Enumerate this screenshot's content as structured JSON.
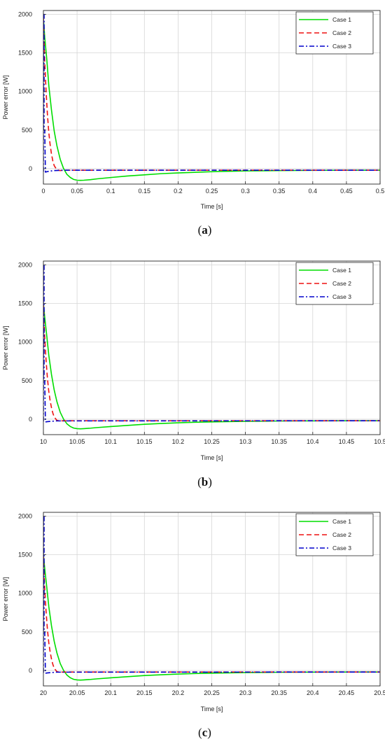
{
  "chart_data": [
    {
      "type": "line",
      "caption": "a",
      "xlabel": "Time [s]",
      "ylabel": "Power error [W]",
      "xlim": [
        0,
        0.5
      ],
      "ylim": [
        -200,
        2050
      ],
      "xticks": [
        0,
        0.05,
        0.1,
        0.15,
        0.2,
        0.25,
        0.3,
        0.35,
        0.4,
        0.45,
        0.5
      ],
      "xtick_labels": [
        "0",
        "0.05",
        "0.1",
        "0.15",
        "0.2",
        "0.25",
        "0.3",
        "0.35",
        "0.4",
        "0.45",
        "0.5"
      ],
      "yticks": [
        0,
        500,
        1000,
        1500,
        2000
      ],
      "ytick_labels": [
        "0",
        "500",
        "1000",
        "1500",
        "2000"
      ],
      "grid": true,
      "legend_position": "top-right",
      "series": [
        {
          "name": "Case 1",
          "color": "#00dd00",
          "style": "solid",
          "x": [
            0,
            0.002,
            0.005,
            0.008,
            0.012,
            0.016,
            0.02,
            0.025,
            0.03,
            0.035,
            0.04,
            0.045,
            0.05,
            0.055,
            0.06,
            0.07,
            0.08,
            0.1,
            0.125,
            0.15,
            0.175,
            0.2,
            0.225,
            0.25,
            0.3,
            0.35,
            0.4,
            0.45,
            0.5
          ],
          "y": [
            1950,
            1700,
            1420,
            1080,
            760,
            490,
            300,
            120,
            0,
            -75,
            -115,
            -140,
            -150,
            -152,
            -150,
            -143,
            -132,
            -115,
            -95,
            -80,
            -65,
            -55,
            -47,
            -40,
            -30,
            -25,
            -22,
            -20,
            -20
          ]
        },
        {
          "name": "Case 2",
          "color": "#ee1111",
          "style": "dashed",
          "x": [
            0,
            0.002,
            0.004,
            0.006,
            0.008,
            0.01,
            0.012,
            0.014,
            0.016,
            0.02,
            0.025,
            0.03,
            0.035,
            0.5
          ],
          "y": [
            1950,
            1380,
            1000,
            700,
            470,
            310,
            190,
            100,
            40,
            -15,
            -25,
            -20,
            -20,
            -20
          ]
        },
        {
          "name": "Case 3",
          "color": "#0000cc",
          "style": "dashdot",
          "x": [
            0,
            0,
            0.001,
            0.001,
            0.002,
            0.003,
            0.005,
            0.008,
            0.015,
            0.03,
            0.5
          ],
          "y": [
            -40,
            2000,
            2000,
            500,
            500,
            -45,
            -40,
            -35,
            -25,
            -20,
            -20
          ]
        }
      ]
    },
    {
      "type": "line",
      "caption": "b",
      "xlabel": "Time [s]",
      "ylabel": "Power error [W]",
      "xlim": [
        10,
        10.5
      ],
      "ylim": [
        -200,
        2050
      ],
      "xticks": [
        10,
        10.05,
        10.1,
        10.15,
        10.2,
        10.25,
        10.3,
        10.35,
        10.4,
        10.45,
        10.5
      ],
      "xtick_labels": [
        "10",
        "10.05",
        "10.1",
        "10.15",
        "10.2",
        "10.25",
        "10.3",
        "10.35",
        "10.4",
        "10.45",
        "10.5"
      ],
      "yticks": [
        0,
        500,
        1000,
        1500,
        2000
      ],
      "ytick_labels": [
        "0",
        "500",
        "1000",
        "1500",
        "2000"
      ],
      "grid": true,
      "legend_position": "top-right",
      "series": [
        {
          "name": "Case 1",
          "color": "#00dd00",
          "style": "solid",
          "x": [
            10,
            10.002,
            10.005,
            10.008,
            10.012,
            10.016,
            10.02,
            10.025,
            10.03,
            10.035,
            10.04,
            10.045,
            10.05,
            10.055,
            10.06,
            10.07,
            10.08,
            10.1,
            10.125,
            10.15,
            10.175,
            10.2,
            10.225,
            10.25,
            10.3,
            10.35,
            10.4,
            10.45,
            10.5
          ],
          "y": [
            1500,
            1320,
            1080,
            830,
            580,
            380,
            230,
            90,
            0,
            -60,
            -95,
            -115,
            -122,
            -125,
            -122,
            -116,
            -108,
            -95,
            -80,
            -66,
            -55,
            -46,
            -40,
            -35,
            -27,
            -23,
            -21,
            -20,
            -20
          ]
        },
        {
          "name": "Case 2",
          "color": "#ee1111",
          "style": "dashed",
          "x": [
            10,
            10.002,
            10.004,
            10.006,
            10.008,
            10.01,
            10.012,
            10.014,
            10.016,
            10.02,
            10.025,
            10.03,
            10.5
          ],
          "y": [
            1500,
            1050,
            760,
            530,
            360,
            240,
            150,
            80,
            30,
            -15,
            -22,
            -20,
            -20
          ]
        },
        {
          "name": "Case 3",
          "color": "#0000cc",
          "style": "dashdot",
          "x": [
            10,
            10,
            10.001,
            10.001,
            10.002,
            10.003,
            10.006,
            10.01,
            10.02,
            10.5
          ],
          "y": [
            -30,
            2000,
            2000,
            500,
            500,
            -35,
            -32,
            -28,
            -22,
            -20
          ]
        }
      ]
    },
    {
      "type": "line",
      "caption": "c",
      "xlabel": "Time [s]",
      "ylabel": "Power error [W]",
      "xlim": [
        20,
        20.5
      ],
      "ylim": [
        -200,
        2050
      ],
      "xticks": [
        20,
        20.05,
        20.1,
        20.15,
        20.2,
        20.25,
        20.3,
        20.35,
        20.4,
        20.45,
        20.5
      ],
      "xtick_labels": [
        "20",
        "20.05",
        "20.1",
        "20.15",
        "20.2",
        "20.25",
        "20.3",
        "20.35",
        "20.4",
        "20.45",
        "20.5"
      ],
      "yticks": [
        0,
        500,
        1000,
        1500,
        2000
      ],
      "ytick_labels": [
        "0",
        "500",
        "1000",
        "1500",
        "2000"
      ],
      "grid": true,
      "legend_position": "top-right",
      "series": [
        {
          "name": "Case 1",
          "color": "#00dd00",
          "style": "solid",
          "x": [
            20,
            20.002,
            20.005,
            20.008,
            20.012,
            20.016,
            20.02,
            20.025,
            20.03,
            20.035,
            20.04,
            20.045,
            20.05,
            20.055,
            20.06,
            20.07,
            20.08,
            20.1,
            20.125,
            20.15,
            20.175,
            20.2,
            20.225,
            20.25,
            20.3,
            20.35,
            20.4,
            20.45,
            20.5
          ],
          "y": [
            1500,
            1320,
            1080,
            830,
            580,
            380,
            230,
            90,
            0,
            -60,
            -95,
            -115,
            -122,
            -125,
            -122,
            -116,
            -108,
            -95,
            -80,
            -66,
            -55,
            -46,
            -40,
            -35,
            -27,
            -23,
            -21,
            -20,
            -20
          ]
        },
        {
          "name": "Case 2",
          "color": "#ee1111",
          "style": "dashed",
          "x": [
            20,
            20.002,
            20.004,
            20.006,
            20.008,
            20.01,
            20.012,
            20.014,
            20.016,
            20.02,
            20.025,
            20.03,
            20.5
          ],
          "y": [
            1500,
            1050,
            760,
            530,
            360,
            240,
            150,
            80,
            30,
            -15,
            -22,
            -20,
            -20
          ]
        },
        {
          "name": "Case 3",
          "color": "#0000cc",
          "style": "dashdot",
          "x": [
            20,
            20,
            20.001,
            20.001,
            20.002,
            20.003,
            20.006,
            20.01,
            20.02,
            20.5
          ],
          "y": [
            -30,
            2000,
            2000,
            500,
            500,
            -35,
            -32,
            -28,
            -22,
            -20
          ]
        }
      ]
    }
  ]
}
